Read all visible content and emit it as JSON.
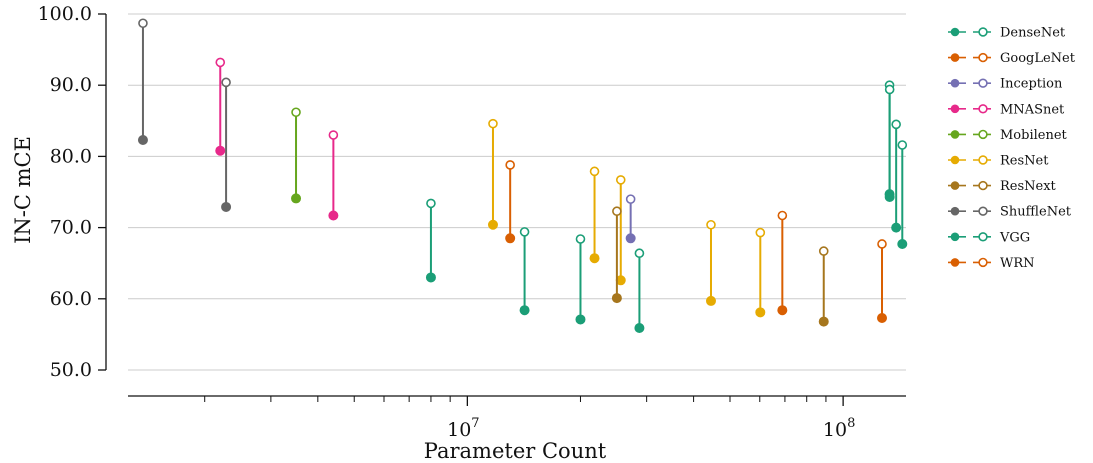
{
  "chart_data": {
    "type": "scatter",
    "xlabel": "Parameter Count",
    "ylabel": "IN-C mCE",
    "x_scale": "log",
    "xlim": [
      1250000,
      147000000
    ],
    "ylim": [
      50,
      100
    ],
    "y_ticks": [
      {
        "value": 50,
        "label": "50.0"
      },
      {
        "value": 60,
        "label": "60.0"
      },
      {
        "value": 70,
        "label": "70.0"
      },
      {
        "value": 80,
        "label": "80.0"
      },
      {
        "value": 90,
        "label": "90.0"
      },
      {
        "value": 100,
        "label": "100.0"
      }
    ],
    "x_major_ticks": [
      {
        "value": 10000000,
        "base": "10",
        "exp": "7"
      },
      {
        "value": 100000000,
        "base": "10",
        "exp": "8"
      }
    ],
    "x_minor_ticks": [
      2000000,
      3000000,
      4000000,
      5000000,
      6000000,
      7000000,
      8000000,
      9000000,
      20000000,
      30000000,
      40000000,
      50000000,
      60000000,
      70000000,
      80000000,
      90000000
    ],
    "grid": "horizontal",
    "legend_position": "right",
    "legend_note": "filled marker = one value, hollow marker = other value of the same model",
    "series": [
      {
        "name": "DenseNet",
        "color": "#1b9e77",
        "points": [
          {
            "x": 8000000,
            "filled": 63.0,
            "hollow": 73.4
          },
          {
            "x": 14200000,
            "filled": 58.4,
            "hollow": 69.4
          },
          {
            "x": 20000000,
            "filled": 57.1,
            "hollow": 68.4
          },
          {
            "x": 28700000,
            "filled": 55.9,
            "hollow": 66.4
          }
        ]
      },
      {
        "name": "GoogLeNet",
        "color": "#d95f02",
        "points": [
          {
            "x": 13000000,
            "filled": 68.5,
            "hollow": 78.8
          }
        ]
      },
      {
        "name": "Inception",
        "color": "#7570b3",
        "points": [
          {
            "x": 27200000,
            "filled": 68.5,
            "hollow": 74.0
          }
        ]
      },
      {
        "name": "MNASnet",
        "color": "#e7298a",
        "points": [
          {
            "x": 2200000,
            "filled": 80.8,
            "hollow": 93.2
          },
          {
            "x": 4400000,
            "filled": 71.7,
            "hollow": 83.0
          }
        ]
      },
      {
        "name": "Mobilenet",
        "color": "#66a61e",
        "points": [
          {
            "x": 3500000,
            "filled": 74.1,
            "hollow": 86.2
          }
        ]
      },
      {
        "name": "ResNet",
        "color": "#e6ab02",
        "points": [
          {
            "x": 11700000,
            "filled": 70.4,
            "hollow": 84.6
          },
          {
            "x": 21800000,
            "filled": 65.7,
            "hollow": 77.9
          },
          {
            "x": 25600000,
            "filled": 62.6,
            "hollow": 76.7
          },
          {
            "x": 44500000,
            "filled": 59.7,
            "hollow": 70.4
          },
          {
            "x": 60200000,
            "filled": 58.1,
            "hollow": 69.3
          }
        ]
      },
      {
        "name": "ResNext",
        "color": "#a6761d",
        "points": [
          {
            "x": 25000000,
            "filled": 60.1,
            "hollow": 72.3
          },
          {
            "x": 88800000,
            "filled": 56.8,
            "hollow": 66.7
          }
        ]
      },
      {
        "name": "ShuffleNet",
        "color": "#666666",
        "points": [
          {
            "x": 1370000,
            "filled": 82.3,
            "hollow": 98.7
          },
          {
            "x": 2280000,
            "filled": 72.9,
            "hollow": 90.4
          }
        ]
      },
      {
        "name": "VGG",
        "color": "#1b9e77",
        "points": [
          {
            "x": 132900000,
            "filled": 74.7,
            "hollow": 90.0
          },
          {
            "x": 133000000,
            "filled": 74.3,
            "hollow": 89.4
          },
          {
            "x": 138400000,
            "filled": 70.0,
            "hollow": 84.5
          },
          {
            "x": 143700000,
            "filled": 67.7,
            "hollow": 81.6
          }
        ]
      },
      {
        "name": "WRN",
        "color": "#d95f02",
        "points": [
          {
            "x": 68900000,
            "filled": 58.4,
            "hollow": 71.7
          },
          {
            "x": 126900000,
            "filled": 57.3,
            "hollow": 67.7
          }
        ]
      }
    ]
  }
}
